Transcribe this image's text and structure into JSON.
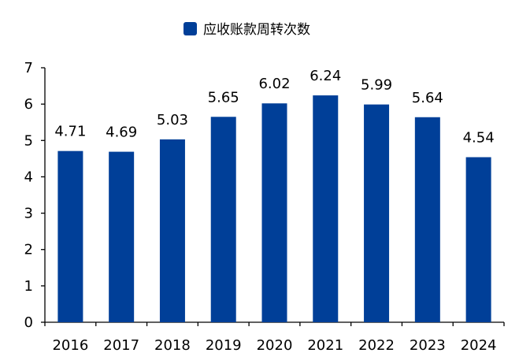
{
  "chart_data": {
    "type": "bar",
    "categories": [
      "2016",
      "2017",
      "2018",
      "2019",
      "2020",
      "2021",
      "2022",
      "2023",
      "2024"
    ],
    "series": [
      {
        "name": "应收账款周转次数",
        "values": [
          4.71,
          4.69,
          5.03,
          5.65,
          6.02,
          6.24,
          5.99,
          5.64,
          4.54
        ],
        "color": "#003f98"
      }
    ],
    "ylim": [
      0,
      7
    ],
    "yticks": [
      0,
      1,
      2,
      3,
      4,
      5,
      6,
      7
    ],
    "data_labels": [
      "4.71",
      "4.69",
      "5.03",
      "5.65",
      "6.02",
      "6.24",
      "5.99",
      "5.64",
      "4.54"
    ],
    "legend_position": "top-center",
    "grid": false
  }
}
